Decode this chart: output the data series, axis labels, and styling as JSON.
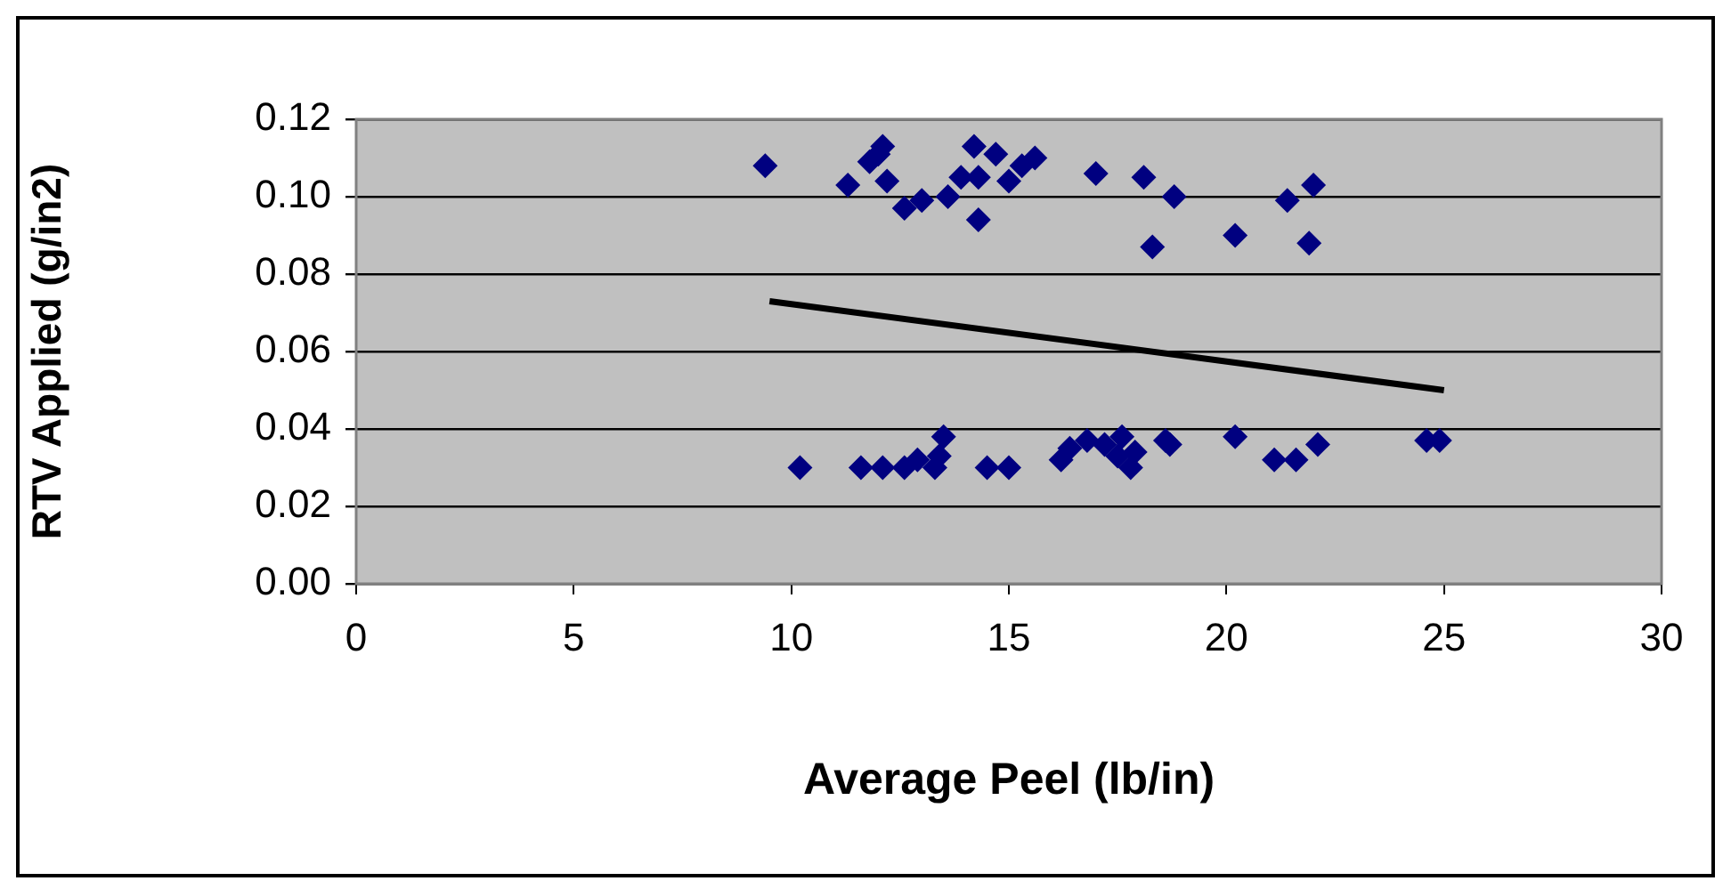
{
  "chart_data": {
    "type": "scatter",
    "xlabel": "Average Peel (lb/in)",
    "ylabel": "RTV Applied (g/in2)",
    "xlim": [
      0,
      30
    ],
    "xticks": [
      0,
      5,
      10,
      15,
      20,
      25,
      30
    ],
    "ylim": [
      0,
      0.12
    ],
    "yticks": [
      {
        "value": 0,
        "label": "0.00"
      },
      0.02,
      0.04,
      0.06,
      0.08,
      {
        "value": 0.1,
        "label": "0.10"
      },
      0.12
    ],
    "grid": "y",
    "legend": false,
    "series": [
      {
        "marker": "diamond",
        "color": "#000080",
        "x": [
          9.4,
          11.3,
          11.8,
          12.1,
          12.2,
          12.0,
          12.6,
          13.0,
          13.6,
          13.9,
          14.2,
          14.3,
          14.3,
          14.7,
          15.0,
          15.3,
          15.6,
          17.0,
          18.1,
          18.3,
          18.8,
          20.2,
          21.4,
          21.9,
          22.0,
          10.2,
          11.6,
          12.1,
          12.6,
          12.9,
          13.3,
          13.4,
          13.5,
          14.5,
          15.0,
          16.2,
          16.4,
          16.8,
          17.2,
          17.6,
          17.5,
          17.8,
          17.9,
          18.6,
          18.7,
          20.2,
          21.1,
          21.6,
          22.1,
          24.6,
          24.9
        ],
        "values": [
          0.108,
          0.103,
          0.109,
          0.113,
          0.104,
          0.111,
          0.097,
          0.099,
          0.1,
          0.105,
          0.113,
          0.105,
          0.094,
          0.111,
          0.104,
          0.108,
          0.11,
          0.106,
          0.105,
          0.087,
          0.1,
          0.09,
          0.099,
          0.088,
          0.103,
          0.03,
          0.03,
          0.03,
          0.03,
          0.032,
          0.03,
          0.033,
          0.038,
          0.03,
          0.03,
          0.032,
          0.035,
          0.037,
          0.036,
          0.038,
          0.033,
          0.03,
          0.034,
          0.037,
          0.036,
          0.038,
          0.032,
          0.032,
          0.036,
          0.037,
          0.037
        ]
      },
      {
        "type": "line",
        "marker": "none",
        "color": "#000000",
        "x": [
          9.5,
          25
        ],
        "values": [
          0.073,
          0.05
        ]
      }
    ]
  }
}
